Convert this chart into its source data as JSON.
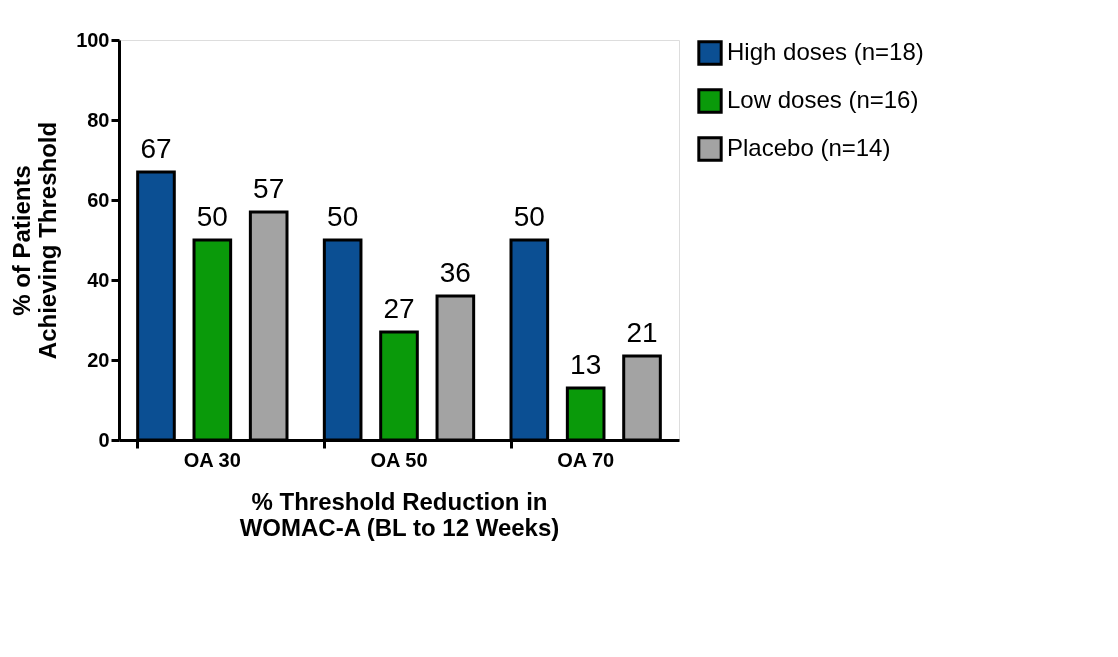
{
  "chart_data": {
    "type": "bar",
    "xlabel": "% Threshold Reduction in\nWOMAC-A (BL to 12 Weeks)",
    "ylabel": "% of Patients\nAchieving Threshold",
    "categories": [
      "OA 30",
      "OA 50",
      "OA 70"
    ],
    "series": [
      {
        "name": "High doses (n=18)",
        "color": "#0b4f93",
        "values": [
          67,
          50,
          50
        ]
      },
      {
        "name": "Low doses (n=16)",
        "color": "#0a9a0a",
        "values": [
          50,
          27,
          13
        ]
      },
      {
        "name": "Placebo (n=14)",
        "color": "#a3a3a3",
        "values": [
          57,
          36,
          21
        ]
      }
    ],
    "ylim": [
      0,
      100
    ],
    "yticks": [
      0,
      20,
      40,
      60,
      80,
      100
    ],
    "legend": "top right",
    "data_labels": true
  }
}
